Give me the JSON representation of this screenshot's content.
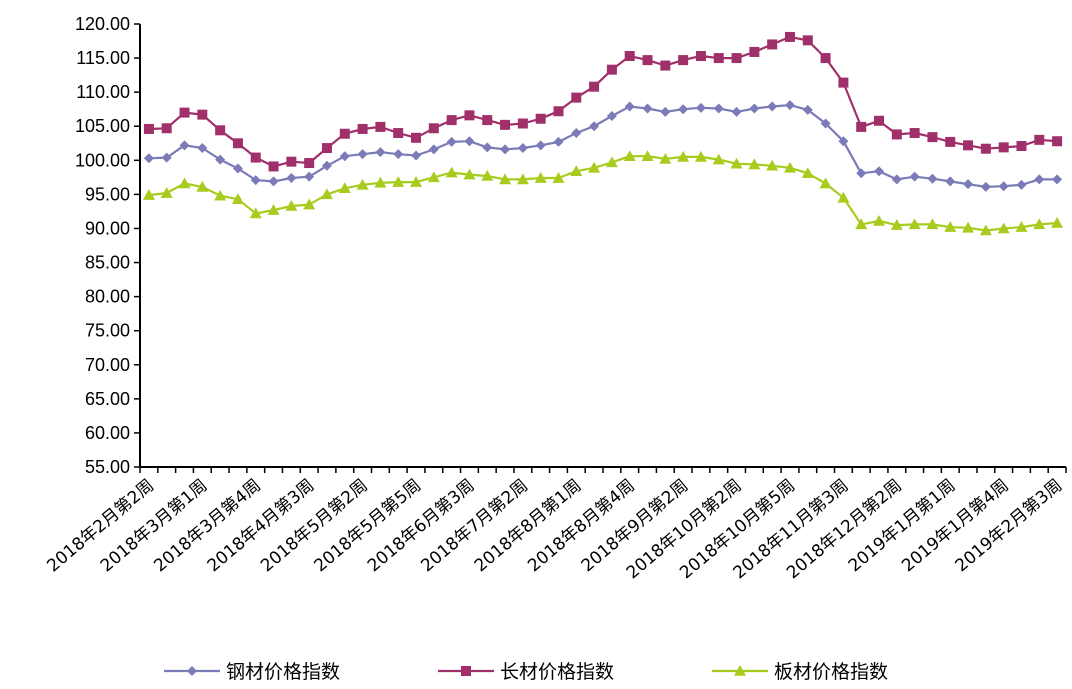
{
  "chart_data": {
    "type": "line",
    "title": "",
    "xlabel": "",
    "ylabel": "",
    "ylim": [
      55,
      120
    ],
    "yticks": [
      "55.00",
      "60.00",
      "65.00",
      "70.00",
      "75.00",
      "80.00",
      "85.00",
      "90.00",
      "95.00",
      "100.00",
      "105.00",
      "110.00",
      "115.00",
      "120.00"
    ],
    "xtick_labels": [
      "2018年2月第2周",
      "2018年3月第1周",
      "2018年3月第4周",
      "2018年4月第3周",
      "2018年5月第2周",
      "2018年5月第5周",
      "2018年6月第3周",
      "2018年7月第2周",
      "2018年8月第1周",
      "2018年8月第4周",
      "2018年9月第2周",
      "2018年10月第2周",
      "2018年10月第5周",
      "2018年11月第3周",
      "2018年12月第2周",
      "2019年1月第1周",
      "2019年1月第4周",
      "2019年2月第3周"
    ],
    "grid": false,
    "legend_position": "bottom",
    "series": [
      {
        "name": "钢材价格指数",
        "color": "#7b7bb8",
        "marker": "diamond",
        "values": [
          100.3,
          100.4,
          102.2,
          101.8,
          100.1,
          98.8,
          97.1,
          96.9,
          97.4,
          97.6,
          99.2,
          100.6,
          100.9,
          101.2,
          100.9,
          100.7,
          101.6,
          102.7,
          102.8,
          101.9,
          101.6,
          101.8,
          102.2,
          102.7,
          104.0,
          105.0,
          106.5,
          107.9,
          107.6,
          107.1,
          107.5,
          107.7,
          107.6,
          107.1,
          107.6,
          107.9,
          108.1,
          107.4,
          105.4,
          102.8,
          98.1,
          98.4,
          97.2,
          97.6,
          97.3,
          96.9,
          96.5,
          96.1,
          96.2,
          96.4,
          97.2,
          97.2
        ]
      },
      {
        "name": "长材价格指数",
        "color": "#a0306a",
        "marker": "square",
        "values": [
          104.6,
          104.7,
          107.0,
          106.7,
          104.4,
          102.5,
          100.4,
          99.1,
          99.8,
          99.6,
          101.8,
          103.9,
          104.6,
          104.9,
          104.0,
          103.3,
          104.7,
          105.9,
          106.6,
          105.9,
          105.2,
          105.4,
          106.1,
          107.2,
          109.2,
          110.8,
          113.3,
          115.3,
          114.7,
          113.9,
          114.7,
          115.3,
          115.0,
          115.0,
          115.9,
          117.0,
          118.1,
          117.6,
          115.0,
          111.4,
          104.9,
          105.8,
          103.8,
          104.0,
          103.4,
          102.7,
          102.2,
          101.7,
          101.9,
          102.1,
          103.0,
          102.8
        ]
      },
      {
        "name": "板材价格指数",
        "color": "#a8cc1e",
        "marker": "triangle",
        "values": [
          94.9,
          95.2,
          96.6,
          96.1,
          94.8,
          94.3,
          92.2,
          92.7,
          93.3,
          93.5,
          95.0,
          95.9,
          96.4,
          96.7,
          96.8,
          96.8,
          97.5,
          98.2,
          97.9,
          97.7,
          97.2,
          97.2,
          97.4,
          97.4,
          98.4,
          98.9,
          99.7,
          100.6,
          100.6,
          100.2,
          100.5,
          100.5,
          100.1,
          99.5,
          99.4,
          99.2,
          98.9,
          98.1,
          96.6,
          94.5,
          90.6,
          91.1,
          90.5,
          90.6,
          90.6,
          90.2,
          90.1,
          89.7,
          90.0,
          90.2,
          90.6,
          90.8
        ]
      }
    ]
  }
}
